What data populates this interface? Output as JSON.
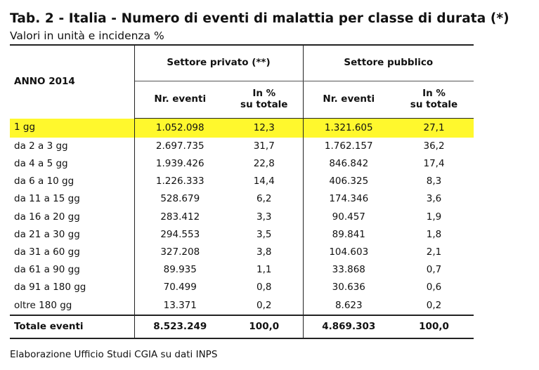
{
  "title": "Tab. 2 - Italia - Numero di eventi di malattia per classe di durata (*)",
  "subtitle": "Valori in unità e incidenza %",
  "table": {
    "year_label": "ANNO 2014",
    "groups": [
      "Settore privato (**)",
      "Settore pubblico"
    ],
    "subheaders": {
      "private_events": "Nr. eventi",
      "private_pct_line1": "In %",
      "private_pct_line2": "su totale",
      "public_events": "Nr. eventi",
      "public_pct_line1": "In %",
      "public_pct_line2": "su totale"
    },
    "highlight_color": "#fff82d",
    "rows": [
      [
        "1 gg",
        "1.052.098",
        "12,3",
        "1.321.605",
        "27,1"
      ],
      [
        "da 2 a 3 gg",
        "2.697.735",
        "31,7",
        "1.762.157",
        "36,2"
      ],
      [
        "da 4 a 5 gg",
        "1.939.426",
        "22,8",
        "846.842",
        "17,4"
      ],
      [
        "da 6 a 10 gg",
        "1.226.333",
        "14,4",
        "406.325",
        "8,3"
      ],
      [
        "da 11 a 15 gg",
        "528.679",
        "6,2",
        "174.346",
        "3,6"
      ],
      [
        "da 16 a 20 gg",
        "283.412",
        "3,3",
        "90.457",
        "1,9"
      ],
      [
        "da 21 a 30 gg",
        "294.553",
        "3,5",
        "89.841",
        "1,8"
      ],
      [
        "da 31 a 60 gg",
        "327.208",
        "3,8",
        "104.603",
        "2,1"
      ],
      [
        "da 61 a 90 gg",
        "89.935",
        "1,1",
        "33.868",
        "0,7"
      ],
      [
        "da 91 a 180 gg",
        "70.499",
        "0,8",
        "30.636",
        "0,6"
      ],
      [
        "oltre 180 gg",
        "13.371",
        "0,2",
        "8.623",
        "0,2"
      ]
    ],
    "total": [
      "Totale eventi",
      "8.523.249",
      "100,0",
      "4.869.303",
      "100,0"
    ]
  },
  "source": "Elaborazione Ufficio Studi CGIA su dati INPS"
}
